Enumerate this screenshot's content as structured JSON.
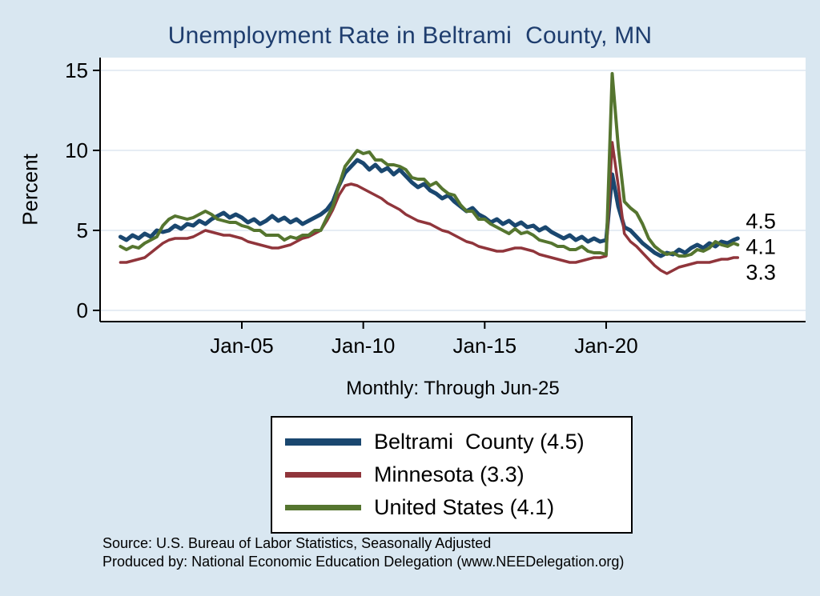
{
  "page": {
    "background": "#d9e7f1"
  },
  "chart_data": {
    "type": "line",
    "title": "Unemployment Rate in Beltrami  County, MN",
    "subtitle": "Monthly: Through Jun-25",
    "ylabel": "Percent",
    "ylim": [
      0,
      15
    ],
    "y_ticks": [
      0,
      5,
      10,
      15
    ],
    "x_ticks": [
      {
        "year": 2005,
        "label": "Jan-05"
      },
      {
        "year": 2010,
        "label": "Jan-10"
      },
      {
        "year": 2015,
        "label": "Jan-15"
      },
      {
        "year": 2020,
        "label": "Jan-20"
      }
    ],
    "grid": true,
    "legend_position": "below",
    "x_unit": "decimal_year",
    "x": [
      2000,
      2000.25,
      2000.5,
      2000.75,
      2001,
      2001.25,
      2001.5,
      2001.75,
      2002,
      2002.25,
      2002.5,
      2002.75,
      2003,
      2003.25,
      2003.5,
      2003.75,
      2004,
      2004.25,
      2004.5,
      2004.75,
      2005,
      2005.25,
      2005.5,
      2005.75,
      2006,
      2006.25,
      2006.5,
      2006.75,
      2007,
      2007.25,
      2007.5,
      2007.75,
      2008,
      2008.25,
      2008.5,
      2008.75,
      2009,
      2009.25,
      2009.5,
      2009.75,
      2010,
      2010.25,
      2010.5,
      2010.75,
      2011,
      2011.25,
      2011.5,
      2011.75,
      2012,
      2012.25,
      2012.5,
      2012.75,
      2013,
      2013.25,
      2013.5,
      2013.75,
      2014,
      2014.25,
      2014.5,
      2014.75,
      2015,
      2015.25,
      2015.5,
      2015.75,
      2016,
      2016.25,
      2016.5,
      2016.75,
      2017,
      2017.25,
      2017.5,
      2017.75,
      2018,
      2018.25,
      2018.5,
      2018.75,
      2019,
      2019.25,
      2019.5,
      2019.75,
      2020,
      2020.25,
      2020.5,
      2020.75,
      2021,
      2021.25,
      2021.5,
      2021.75,
      2022,
      2022.25,
      2022.5,
      2022.75,
      2023,
      2023.25,
      2023.5,
      2023.75,
      2024,
      2024.25,
      2024.5,
      2024.75,
      2025,
      2025.25,
      2025.42
    ],
    "series": [
      {
        "name": "Beltrami  County",
        "legend_label": "Beltrami  County (4.5)",
        "color": "#1a476f",
        "line_width": 5,
        "values": [
          4.6,
          4.4,
          4.7,
          4.5,
          4.8,
          4.6,
          5.0,
          4.9,
          5.0,
          5.3,
          5.1,
          5.4,
          5.3,
          5.6,
          5.4,
          5.7,
          5.9,
          6.1,
          5.8,
          6.0,
          5.8,
          5.5,
          5.7,
          5.4,
          5.6,
          5.9,
          5.6,
          5.8,
          5.5,
          5.7,
          5.4,
          5.6,
          5.8,
          6.0,
          6.3,
          6.8,
          7.8,
          8.6,
          9.0,
          9.4,
          9.2,
          8.8,
          9.1,
          8.7,
          8.9,
          8.5,
          8.8,
          8.4,
          8.0,
          7.7,
          7.9,
          7.5,
          7.3,
          7.0,
          7.2,
          6.8,
          6.5,
          6.2,
          6.4,
          6.0,
          5.8,
          5.5,
          5.7,
          5.4,
          5.6,
          5.3,
          5.5,
          5.2,
          5.3,
          5.0,
          5.2,
          4.9,
          4.7,
          4.5,
          4.7,
          4.4,
          4.6,
          4.3,
          4.5,
          4.3,
          4.4,
          8.5,
          6.5,
          5.2,
          5.0,
          4.6,
          4.2,
          3.9,
          3.6,
          3.4,
          3.6,
          3.5,
          3.8,
          3.6,
          3.9,
          4.1,
          3.9,
          4.2,
          4.0,
          4.3,
          4.2,
          4.4,
          4.5
        ]
      },
      {
        "name": "Minnesota",
        "legend_label": "Minnesota (3.3)",
        "color": "#90353b",
        "line_width": 3.5,
        "values": [
          3.0,
          3.0,
          3.1,
          3.2,
          3.3,
          3.6,
          3.9,
          4.2,
          4.4,
          4.5,
          4.5,
          4.5,
          4.6,
          4.8,
          5.0,
          4.9,
          4.8,
          4.7,
          4.7,
          4.6,
          4.5,
          4.3,
          4.2,
          4.1,
          4.0,
          3.9,
          3.9,
          4.0,
          4.1,
          4.3,
          4.5,
          4.6,
          4.8,
          5.0,
          5.6,
          6.3,
          7.2,
          7.8,
          7.9,
          7.8,
          7.6,
          7.4,
          7.2,
          7.0,
          6.7,
          6.5,
          6.3,
          6.0,
          5.8,
          5.6,
          5.5,
          5.4,
          5.2,
          5.0,
          4.9,
          4.7,
          4.5,
          4.3,
          4.2,
          4.0,
          3.9,
          3.8,
          3.7,
          3.7,
          3.8,
          3.9,
          3.9,
          3.8,
          3.7,
          3.5,
          3.4,
          3.3,
          3.2,
          3.1,
          3.0,
          3.0,
          3.1,
          3.2,
          3.3,
          3.3,
          3.4,
          10.5,
          7.8,
          4.8,
          4.3,
          4.0,
          3.6,
          3.2,
          2.8,
          2.5,
          2.3,
          2.5,
          2.7,
          2.8,
          2.9,
          3.0,
          3.0,
          3.0,
          3.1,
          3.2,
          3.2,
          3.3,
          3.3
        ]
      },
      {
        "name": "United States",
        "legend_label": "United States (4.1)",
        "color": "#55752f",
        "line_width": 4,
        "values": [
          4.0,
          3.8,
          4.0,
          3.9,
          4.2,
          4.4,
          4.6,
          5.3,
          5.7,
          5.9,
          5.8,
          5.7,
          5.8,
          6.0,
          6.2,
          6.0,
          5.7,
          5.6,
          5.5,
          5.5,
          5.3,
          5.2,
          5.0,
          5.0,
          4.7,
          4.7,
          4.7,
          4.4,
          4.6,
          4.5,
          4.7,
          4.7,
          5.0,
          5.0,
          5.8,
          6.5,
          7.8,
          9.0,
          9.5,
          10.0,
          9.8,
          9.9,
          9.4,
          9.4,
          9.1,
          9.1,
          9.0,
          8.8,
          8.3,
          8.2,
          8.2,
          7.8,
          8.0,
          7.6,
          7.3,
          7.2,
          6.6,
          6.2,
          6.2,
          5.7,
          5.7,
          5.4,
          5.2,
          5.0,
          4.8,
          5.1,
          4.8,
          4.9,
          4.7,
          4.4,
          4.3,
          4.2,
          4.0,
          4.0,
          3.8,
          3.8,
          4.0,
          3.7,
          3.6,
          3.6,
          3.5,
          14.8,
          10.2,
          6.8,
          6.4,
          6.1,
          5.4,
          4.5,
          4.0,
          3.7,
          3.5,
          3.6,
          3.4,
          3.4,
          3.5,
          3.8,
          3.7,
          3.9,
          4.3,
          4.1,
          4.0,
          4.2,
          4.1
        ]
      }
    ],
    "end_labels": [
      {
        "text": "4.5",
        "value": 4.5
      },
      {
        "text": "4.1",
        "value": 4.1
      },
      {
        "text": "3.3",
        "value": 3.3
      }
    ]
  },
  "notes": {
    "source": "Source: U.S. Bureau of Labor Statistics, Seasonally Adjusted",
    "produced_by": "Produced by: National Economic Education Delegation (www.NEEDelegation.org)"
  }
}
